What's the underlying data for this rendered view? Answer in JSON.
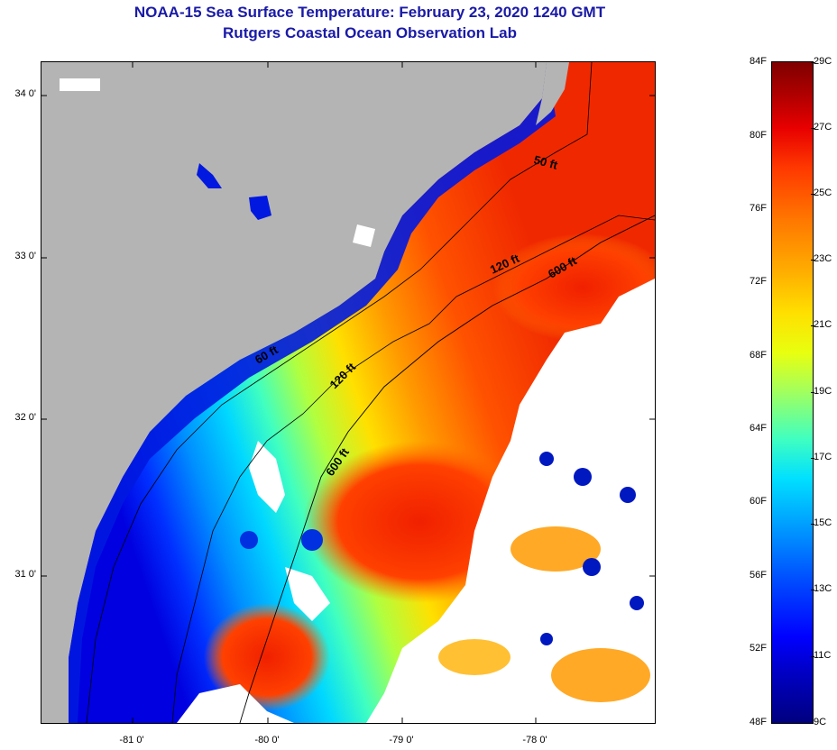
{
  "title": "NOAA-15 Sea Surface Temperature:  February 23, 2020 1240 GMT",
  "subtitle": "Rutgers Coastal Ocean Observation Lab",
  "map": {
    "y_ticks": [
      {
        "label": "34 0'",
        "lat": 34.0
      },
      {
        "label": "33 0'",
        "lat": 33.0
      },
      {
        "label": "32 0'",
        "lat": 32.0
      },
      {
        "label": "31 0'",
        "lat": 31.0
      }
    ],
    "x_ticks": [
      {
        "label": "-81 0'",
        "lon": -81.0
      },
      {
        "label": "-80 0'",
        "lon": -80.0
      },
      {
        "label": "-79 0'",
        "lon": -79.0
      },
      {
        "label": "-78 0'",
        "lon": -78.0
      }
    ],
    "lat_range": [
      30.2,
      34.25
    ],
    "lon_range": [
      -81.68,
      -77.15
    ],
    "contours": [
      {
        "label": "50 ft"
      },
      {
        "label": "60 ft"
      },
      {
        "label": "120 ft"
      },
      {
        "label": "120 ft"
      },
      {
        "label": "600 ft"
      },
      {
        "label": "600 ft"
      }
    ],
    "land_color": "#b4b4b4",
    "cloud_color": "#ffffff"
  },
  "colorbar": {
    "fahrenheit_labels": [
      "84F",
      "80F",
      "76F",
      "72F",
      "68F",
      "64F",
      "60F",
      "56F",
      "52F",
      "48F"
    ],
    "celsius_labels": [
      "29C",
      "27C",
      "25C",
      "23C",
      "21C",
      "19C",
      "17C",
      "15C",
      "13C",
      "11C",
      "9C"
    ],
    "f_range": [
      48,
      84
    ],
    "c_range": [
      9,
      29
    ]
  }
}
